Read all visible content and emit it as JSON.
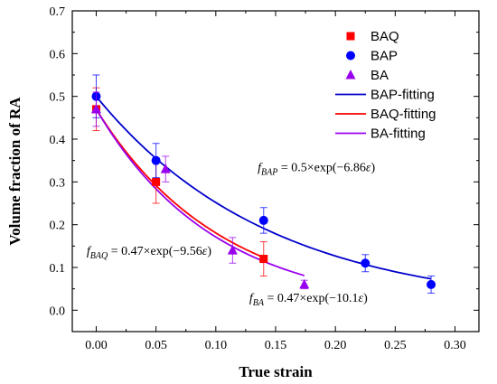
{
  "chart_data": {
    "type": "scatter",
    "xlabel": "True strain",
    "ylabel": "Volume fraction of RA",
    "xlim": [
      -0.02,
      0.32
    ],
    "ylim": [
      -0.05,
      0.7
    ],
    "x_ticks": [
      0.0,
      0.05,
      0.1,
      0.15,
      0.2,
      0.25,
      0.3
    ],
    "x_tick_labels": [
      "0.00",
      "0.05",
      "0.10",
      "0.15",
      "0.20",
      "0.25",
      "0.30"
    ],
    "y_ticks": [
      0.0,
      0.1,
      0.2,
      0.3,
      0.4,
      0.5,
      0.6,
      0.7
    ],
    "y_tick_labels": [
      "0.0",
      "0.1",
      "0.2",
      "0.3",
      "0.4",
      "0.5",
      "0.6",
      "0.7"
    ],
    "grid": false,
    "legend_position": "top-right",
    "series": [
      {
        "name": "BAQ",
        "kind": "points",
        "marker": "square",
        "color": "#ff0000",
        "x": [
          0.0,
          0.05,
          0.14
        ],
        "y": [
          0.47,
          0.3,
          0.12
        ],
        "err": [
          0.05,
          0.05,
          0.04
        ]
      },
      {
        "name": "BAP",
        "kind": "points",
        "marker": "circle",
        "color": "#0000ff",
        "x": [
          0.0,
          0.05,
          0.14,
          0.225,
          0.28
        ],
        "y": [
          0.5,
          0.35,
          0.21,
          0.11,
          0.06
        ],
        "err": [
          0.05,
          0.04,
          0.03,
          0.02,
          0.02
        ]
      },
      {
        "name": "BA",
        "kind": "points",
        "marker": "triangle",
        "color": "#9900ee",
        "x": [
          0.0,
          0.058,
          0.114,
          0.174
        ],
        "y": [
          0.47,
          0.33,
          0.14,
          0.06
        ],
        "err": [
          0.04,
          0.03,
          0.03,
          0.01
        ]
      },
      {
        "name": "BAP-fitting",
        "kind": "line",
        "color": "#0000cc",
        "a": 0.5,
        "b": 6.86,
        "x_range": [
          0.0,
          0.28
        ]
      },
      {
        "name": "BAQ-fitting",
        "kind": "line",
        "color": "#ff0000",
        "a": 0.47,
        "b": 9.56,
        "x_range": [
          0.0,
          0.14
        ]
      },
      {
        "name": "BA-fitting",
        "kind": "line",
        "color": "#9900ee",
        "a": 0.47,
        "b": 10.1,
        "x_range": [
          0.0,
          0.174
        ]
      }
    ],
    "annotations": [
      {
        "f": "f",
        "sub": "BAP",
        "text": " = 0.5×exp(−6.86",
        "eps": "ε",
        "close": ")",
        "x": 0.135,
        "y": 0.325
      },
      {
        "f": "f",
        "sub": "BAQ",
        "text": " = 0.47×exp(−9.56",
        "eps": "ε",
        "close": ")",
        "x": -0.008,
        "y": 0.13
      },
      {
        "f": "f",
        "sub": "BA",
        "text": " = 0.47×exp(−10.1",
        "eps": "ε",
        "close": ")",
        "x": 0.128,
        "y": 0.02
      }
    ]
  }
}
